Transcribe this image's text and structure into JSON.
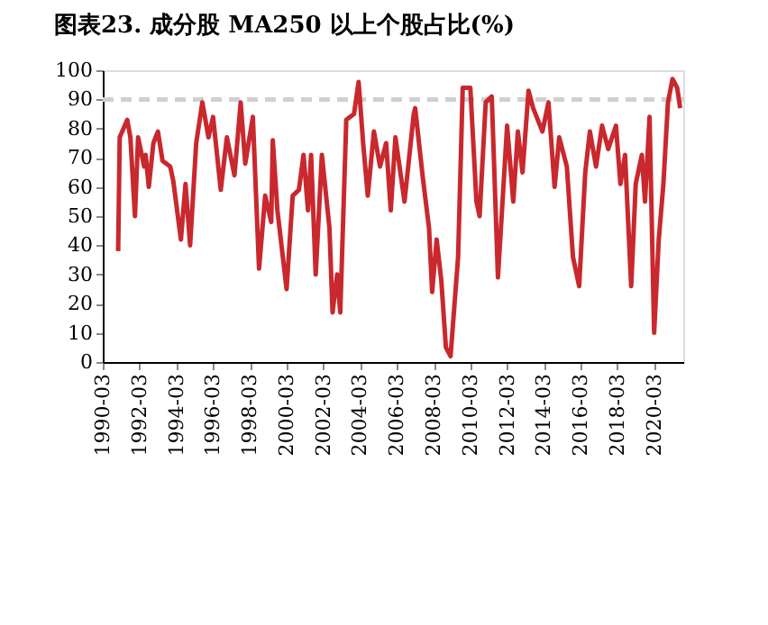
{
  "chart_data": {
    "type": "line",
    "title": "图表23.  成分股 MA250 以上个股占比(%)",
    "x": [
      "1991-01",
      "1991-02",
      "1991-07",
      "1991-09",
      "1991-12",
      "1992-02",
      "1992-06",
      "1992-07",
      "1992-09",
      "1992-12",
      "1993-03",
      "1993-06",
      "1993-11",
      "1994-01",
      "1994-06",
      "1994-09",
      "1994-12",
      "1995-04",
      "1995-08",
      "1995-12",
      "1996-03",
      "1996-08",
      "1996-12",
      "1997-05",
      "1997-09",
      "1997-12",
      "1998-05",
      "1998-09",
      "1999-01",
      "1999-05",
      "1999-06",
      "1999-09",
      "2000-03",
      "2000-07",
      "2000-11",
      "2001-02",
      "2001-05",
      "2001-07",
      "2001-10",
      "2002-02",
      "2002-07",
      "2002-09",
      "2002-12",
      "2003-02",
      "2003-06",
      "2003-11",
      "2004-02",
      "2004-05",
      "2004-08",
      "2004-12",
      "2005-04",
      "2005-08",
      "2005-11",
      "2006-02",
      "2006-08",
      "2007-02",
      "2007-03",
      "2007-08",
      "2007-12",
      "2008-02",
      "2008-05",
      "2008-08",
      "2008-11",
      "2009-02",
      "2009-07",
      "2009-10",
      "2010-03",
      "2010-07",
      "2010-09",
      "2011-01",
      "2011-05",
      "2011-09",
      "2012-03",
      "2012-07",
      "2012-10",
      "2013-01",
      "2013-05",
      "2013-08",
      "2014-02",
      "2014-06",
      "2014-10",
      "2015-01",
      "2015-06",
      "2015-10",
      "2016-02",
      "2016-06",
      "2016-09",
      "2017-01",
      "2017-05",
      "2017-09",
      "2018-02",
      "2018-05",
      "2018-08",
      "2018-12",
      "2019-03",
      "2019-07",
      "2019-09",
      "2019-12",
      "2020-03",
      "2020-06",
      "2020-09",
      "2020-12",
      "2021-03",
      "2021-06",
      "2021-08"
    ],
    "series": [
      {
        "color": "#c8282e",
        "values": [
          38,
          77,
          83,
          77,
          50,
          77,
          67,
          71,
          60,
          75,
          79,
          69,
          67,
          62,
          42,
          61,
          40,
          75,
          89,
          77,
          84,
          59,
          77,
          64,
          89,
          68,
          84,
          32,
          57,
          48,
          76,
          52,
          25,
          57,
          59,
          71,
          52,
          71,
          30,
          71,
          46,
          17,
          30,
          17,
          83,
          85,
          96,
          75,
          57,
          79,
          67,
          75,
          52,
          77,
          55,
          85,
          87,
          63,
          46,
          24,
          42,
          28,
          5,
          2,
          36,
          94,
          94,
          55,
          50,
          89,
          91,
          29,
          81,
          55,
          79,
          65,
          93,
          87,
          79,
          89,
          60,
          77,
          67,
          36,
          26,
          65,
          79,
          67,
          81,
          73,
          81,
          61,
          71,
          26,
          61,
          71,
          55,
          84,
          10,
          42,
          61,
          89,
          97,
          94,
          87
        ]
      }
    ],
    "xlim": [
      "1990-03",
      "2021-10"
    ],
    "xticks": [
      "1990-03",
      "1992-03",
      "1994-03",
      "1996-03",
      "1998-03",
      "2000-03",
      "2002-03",
      "2004-03",
      "2006-03",
      "2008-03",
      "2010-03",
      "2012-03",
      "2014-03",
      "2016-03",
      "2018-03",
      "2020-03"
    ],
    "ylim": [
      0,
      100
    ],
    "yticks": [
      0,
      10,
      20,
      30,
      40,
      50,
      60,
      70,
      80,
      90,
      100
    ],
    "ref_lines": [
      {
        "axis": "y",
        "value": 90,
        "color": "#d0d0d0",
        "line_style": "dashed"
      }
    ],
    "grid": false,
    "marker": "none",
    "line_style": "solid"
  }
}
